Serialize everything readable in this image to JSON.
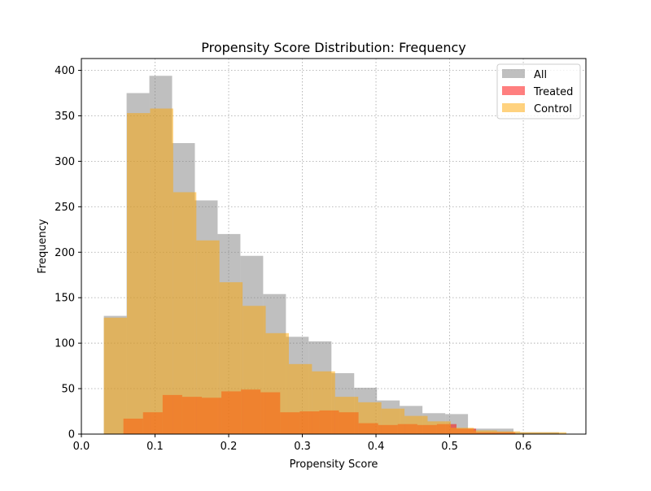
{
  "chart_data": {
    "type": "bar",
    "title": "Propensity Score Distribution: Frequency",
    "xlabel": "Propensity Score",
    "ylabel": "Frequency",
    "xlim": [
      0.0,
      0.685
    ],
    "ylim": [
      0,
      413
    ],
    "xticks": [
      0.0,
      0.1,
      0.2,
      0.3,
      0.4,
      0.5,
      0.6
    ],
    "xtick_labels": [
      "0.0",
      "0.1",
      "0.2",
      "0.3",
      "0.4",
      "0.5",
      "0.6"
    ],
    "yticks": [
      0,
      50,
      100,
      150,
      200,
      250,
      300,
      350,
      400
    ],
    "ytick_labels": [
      "0",
      "50",
      "100",
      "150",
      "200",
      "250",
      "300",
      "350",
      "400"
    ],
    "grid": true,
    "legend_position": "top-right",
    "series": [
      {
        "name": "All",
        "color": "#808080",
        "opacity": 0.5,
        "bins": [
          [
            0.0305,
            0.0614,
            130
          ],
          [
            0.0614,
            0.0923,
            375
          ],
          [
            0.0923,
            0.1232,
            394
          ],
          [
            0.1232,
            0.1541,
            320
          ],
          [
            0.1541,
            0.185,
            257
          ],
          [
            0.185,
            0.2159,
            220
          ],
          [
            0.2159,
            0.2468,
            196
          ],
          [
            0.2468,
            0.2777,
            154
          ],
          [
            0.2777,
            0.3086,
            107
          ],
          [
            0.3086,
            0.3395,
            102
          ],
          [
            0.3395,
            0.3704,
            67
          ],
          [
            0.3704,
            0.4013,
            51
          ],
          [
            0.4013,
            0.4322,
            37
          ],
          [
            0.4322,
            0.4631,
            31
          ],
          [
            0.4631,
            0.494,
            23
          ],
          [
            0.494,
            0.5249,
            22
          ],
          [
            0.5249,
            0.5558,
            6
          ],
          [
            0.5558,
            0.5867,
            6
          ],
          [
            0.5867,
            0.6176,
            2
          ],
          [
            0.6176,
            0.6485,
            2
          ]
        ]
      },
      {
        "name": "Treated",
        "color": "#ff0000",
        "opacity": 0.5,
        "bins": [
          [
            0.0571,
            0.0837,
            17
          ],
          [
            0.0837,
            0.1103,
            24
          ],
          [
            0.1103,
            0.1369,
            43
          ],
          [
            0.1369,
            0.1635,
            41
          ],
          [
            0.1635,
            0.1901,
            40
          ],
          [
            0.1901,
            0.2167,
            47
          ],
          [
            0.2167,
            0.2433,
            49
          ],
          [
            0.2433,
            0.2699,
            46
          ],
          [
            0.2699,
            0.2965,
            24
          ],
          [
            0.2965,
            0.3231,
            25
          ],
          [
            0.3231,
            0.3497,
            26
          ],
          [
            0.3497,
            0.3763,
            24
          ],
          [
            0.3763,
            0.4029,
            12
          ],
          [
            0.4029,
            0.4295,
            10
          ],
          [
            0.4295,
            0.4561,
            11
          ],
          [
            0.4561,
            0.4827,
            10
          ],
          [
            0.4827,
            0.5093,
            11
          ],
          [
            0.5093,
            0.5359,
            6
          ],
          [
            0.5359,
            0.5625,
            2
          ],
          [
            0.5625,
            0.5891,
            2
          ]
        ]
      },
      {
        "name": "Control",
        "color": "#ffa500",
        "opacity": 0.5,
        "bins": [
          [
            0.0305,
            0.0619,
            128
          ],
          [
            0.0619,
            0.0933,
            353
          ],
          [
            0.0933,
            0.1247,
            358
          ],
          [
            0.1247,
            0.1561,
            266
          ],
          [
            0.1561,
            0.1875,
            213
          ],
          [
            0.1875,
            0.2189,
            167
          ],
          [
            0.2189,
            0.2503,
            141
          ],
          [
            0.2503,
            0.2817,
            111
          ],
          [
            0.2817,
            0.3131,
            77
          ],
          [
            0.3131,
            0.3445,
            69
          ],
          [
            0.3445,
            0.3759,
            41
          ],
          [
            0.3759,
            0.4073,
            35
          ],
          [
            0.4073,
            0.4387,
            28
          ],
          [
            0.4387,
            0.4701,
            20
          ],
          [
            0.4701,
            0.5015,
            14
          ],
          [
            0.5015,
            0.5329,
            7
          ],
          [
            0.5329,
            0.5643,
            4
          ],
          [
            0.5643,
            0.5957,
            3
          ],
          [
            0.5957,
            0.6271,
            2
          ],
          [
            0.6271,
            0.6585,
            2
          ]
        ]
      }
    ]
  }
}
